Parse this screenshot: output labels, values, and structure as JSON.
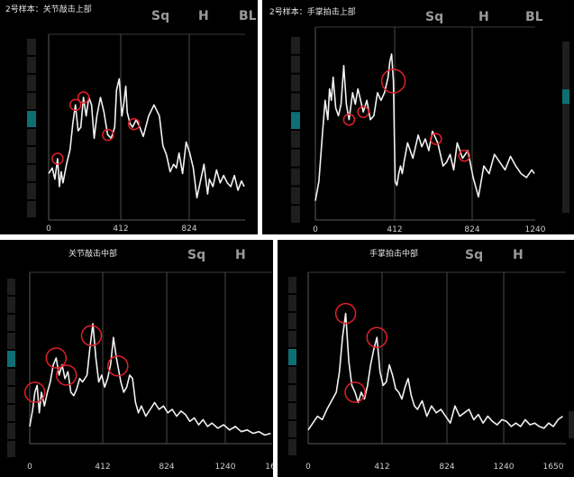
{
  "tabs": {
    "sq": "Sq",
    "h": "H",
    "bl": "BL"
  },
  "accent_color": "#0e6f73",
  "marker_color": "#e0202a",
  "chart_data": [
    {
      "type": "line",
      "title": "2号样本：关节敲击上部",
      "tick_labels": [
        "0",
        "412",
        "824"
      ],
      "xlim": [
        0,
        1100
      ],
      "ylim": [
        0,
        1
      ],
      "series": [
        {
          "x": [
            0,
            20,
            35,
            50,
            60,
            70,
            80,
            100,
            120,
            135,
            150,
            165,
            180,
            195,
            210,
            225,
            240,
            255,
            270,
            290,
            310,
            330,
            350,
            370,
            380,
            395,
            410,
            420,
            432,
            440,
            455,
            470,
            490,
            510,
            530,
            560,
            590,
            620,
            640,
            660,
            680,
            700,
            715,
            730,
            750,
            770,
            790,
            810,
            830,
            850,
            870,
            890,
            900,
            920,
            940,
            960,
            980,
            1000,
            1020,
            1040,
            1060,
            1080,
            1095
          ],
          "y": [
            0.25,
            0.28,
            0.22,
            0.33,
            0.18,
            0.26,
            0.2,
            0.3,
            0.38,
            0.52,
            0.62,
            0.48,
            0.5,
            0.66,
            0.56,
            0.66,
            0.62,
            0.44,
            0.56,
            0.66,
            0.58,
            0.46,
            0.44,
            0.5,
            0.7,
            0.76,
            0.56,
            0.62,
            0.72,
            0.58,
            0.52,
            0.5,
            0.54,
            0.5,
            0.45,
            0.56,
            0.62,
            0.56,
            0.4,
            0.35,
            0.26,
            0.3,
            0.28,
            0.36,
            0.25,
            0.42,
            0.36,
            0.28,
            0.12,
            0.21,
            0.3,
            0.14,
            0.22,
            0.18,
            0.27,
            0.2,
            0.24,
            0.2,
            0.18,
            0.24,
            0.16,
            0.21,
            0.18
          ]
        }
      ],
      "markers_x": [
        50,
        150,
        195,
        332,
        478
      ]
    },
    {
      "type": "line",
      "title": "2号样本：手掌拍击上部",
      "tick_labels": [
        "0",
        "412",
        "824",
        "1240"
      ],
      "xlim": [
        0,
        1240
      ],
      "ylim": [
        0,
        1
      ],
      "series": [
        {
          "x": [
            0,
            20,
            40,
            55,
            70,
            80,
            90,
            100,
            115,
            130,
            145,
            160,
            175,
            190,
            210,
            225,
            240,
            255,
            270,
            290,
            310,
            330,
            350,
            370,
            390,
            410,
            420,
            430,
            440,
            450,
            460,
            470,
            480,
            490,
            500,
            520,
            550,
            580,
            600,
            620,
            640,
            660,
            690,
            720,
            740,
            760,
            780,
            800,
            830,
            860,
            890,
            920,
            950,
            980,
            1010,
            1040,
            1070,
            1100,
            1130,
            1160,
            1190,
            1220,
            1235
          ],
          "y": [
            0.1,
            0.2,
            0.45,
            0.62,
            0.52,
            0.68,
            0.62,
            0.74,
            0.58,
            0.54,
            0.6,
            0.8,
            0.6,
            0.52,
            0.66,
            0.6,
            0.68,
            0.62,
            0.56,
            0.62,
            0.52,
            0.54,
            0.66,
            0.62,
            0.66,
            0.74,
            0.82,
            0.86,
            0.72,
            0.2,
            0.18,
            0.24,
            0.28,
            0.24,
            0.3,
            0.4,
            0.32,
            0.44,
            0.38,
            0.42,
            0.36,
            0.46,
            0.4,
            0.28,
            0.3,
            0.34,
            0.26,
            0.4,
            0.32,
            0.36,
            0.22,
            0.12,
            0.28,
            0.24,
            0.34,
            0.3,
            0.26,
            0.33,
            0.28,
            0.24,
            0.22,
            0.26,
            0.24
          ]
        }
      ],
      "markers_x": [
        190,
        270,
        440,
        680,
        840
      ]
    },
    {
      "type": "line",
      "title": "关节敲击中部",
      "tick_labels": [
        "0",
        "412",
        "824",
        "1240",
        "16"
      ],
      "xlim": [
        0,
        1650
      ],
      "ylim": [
        0,
        1
      ],
      "series": [
        {
          "x": [
            0,
            20,
            35,
            50,
            65,
            80,
            100,
            120,
            140,
            160,
            180,
            200,
            220,
            240,
            260,
            280,
            300,
            320,
            340,
            360,
            390,
            410,
            430,
            450,
            470,
            490,
            510,
            530,
            550,
            570,
            590,
            620,
            640,
            660,
            680,
            700,
            720,
            740,
            760,
            790,
            820,
            850,
            880,
            910,
            940,
            970,
            1000,
            1030,
            1060,
            1090,
            1120,
            1150,
            1180,
            1210,
            1240,
            1280,
            1320,
            1360,
            1400,
            1440,
            1480,
            1520,
            1560,
            1600,
            1640
          ],
          "y": [
            0.1,
            0.2,
            0.3,
            0.34,
            0.18,
            0.3,
            0.22,
            0.3,
            0.36,
            0.46,
            0.5,
            0.4,
            0.46,
            0.38,
            0.42,
            0.3,
            0.28,
            0.32,
            0.38,
            0.36,
            0.4,
            0.56,
            0.7,
            0.5,
            0.36,
            0.4,
            0.33,
            0.38,
            0.46,
            0.62,
            0.5,
            0.36,
            0.3,
            0.33,
            0.4,
            0.38,
            0.24,
            0.18,
            0.22,
            0.16,
            0.2,
            0.24,
            0.2,
            0.22,
            0.18,
            0.2,
            0.16,
            0.19,
            0.17,
            0.13,
            0.15,
            0.11,
            0.14,
            0.1,
            0.12,
            0.09,
            0.11,
            0.08,
            0.1,
            0.07,
            0.08,
            0.06,
            0.07,
            0.05,
            0.06
          ]
        }
      ],
      "markers_x": [
        35,
        180,
        250,
        420,
        600
      ]
    },
    {
      "type": "line",
      "title": "手掌拍击中部",
      "tick_labels": [
        "0",
        "412",
        "824",
        "1240",
        "1650"
      ],
      "xlim": [
        0,
        1650
      ],
      "ylim": [
        0,
        1
      ],
      "series": [
        {
          "x": [
            0,
            30,
            60,
            90,
            120,
            150,
            180,
            200,
            220,
            240,
            260,
            280,
            300,
            320,
            340,
            360,
            380,
            400,
            420,
            440,
            460,
            480,
            500,
            520,
            540,
            560,
            580,
            600,
            620,
            640,
            660,
            680,
            700,
            730,
            760,
            790,
            820,
            850,
            880,
            910,
            940,
            970,
            1000,
            1030,
            1060,
            1090,
            1120,
            1150,
            1180,
            1210,
            1240,
            1270,
            1300,
            1330,
            1360,
            1390,
            1420,
            1450,
            1480,
            1510,
            1540,
            1570,
            1600,
            1630
          ],
          "y": [
            0.08,
            0.12,
            0.16,
            0.14,
            0.2,
            0.25,
            0.3,
            0.42,
            0.62,
            0.76,
            0.48,
            0.34,
            0.3,
            0.24,
            0.3,
            0.26,
            0.34,
            0.46,
            0.55,
            0.62,
            0.42,
            0.34,
            0.36,
            0.46,
            0.4,
            0.32,
            0.3,
            0.26,
            0.33,
            0.38,
            0.28,
            0.22,
            0.2,
            0.25,
            0.16,
            0.22,
            0.18,
            0.2,
            0.16,
            0.12,
            0.22,
            0.16,
            0.18,
            0.2,
            0.14,
            0.17,
            0.12,
            0.16,
            0.13,
            0.11,
            0.14,
            0.13,
            0.1,
            0.12,
            0.1,
            0.14,
            0.11,
            0.12,
            0.1,
            0.09,
            0.12,
            0.1,
            0.14,
            0.16
          ]
        }
      ],
      "markers_x": [
        240,
        300,
        440
      ]
    }
  ]
}
